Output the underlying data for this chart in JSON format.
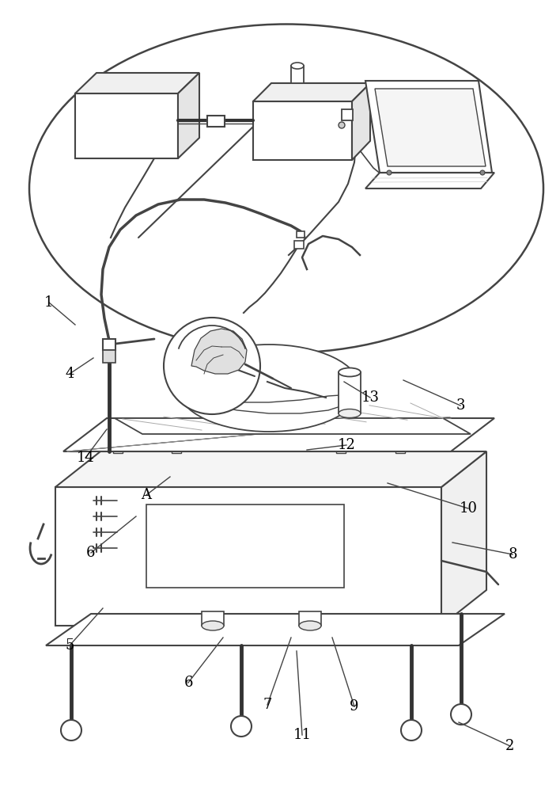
{
  "bg_color": "#ffffff",
  "lc": "#444444",
  "figsize": [
    7.08,
    10.0
  ],
  "dpi": 100,
  "annotations": [
    [
      "1",
      62,
      618,
      95,
      590
    ],
    [
      "2",
      645,
      58,
      580,
      88
    ],
    [
      "3",
      582,
      488,
      510,
      520
    ],
    [
      "4",
      88,
      528,
      118,
      548
    ],
    [
      "5",
      88,
      185,
      130,
      232
    ],
    [
      "6",
      238,
      138,
      282,
      195
    ],
    [
      "6",
      115,
      302,
      172,
      348
    ],
    [
      "7",
      338,
      110,
      368,
      195
    ],
    [
      "8",
      648,
      300,
      572,
      315
    ],
    [
      "9",
      448,
      108,
      420,
      195
    ],
    [
      "10",
      592,
      358,
      490,
      390
    ],
    [
      "11",
      382,
      72,
      375,
      178
    ],
    [
      "12",
      438,
      438,
      388,
      432
    ],
    [
      "13",
      468,
      498,
      435,
      518
    ],
    [
      "14",
      108,
      422,
      135,
      458
    ],
    [
      "A",
      185,
      375,
      215,
      398
    ]
  ]
}
